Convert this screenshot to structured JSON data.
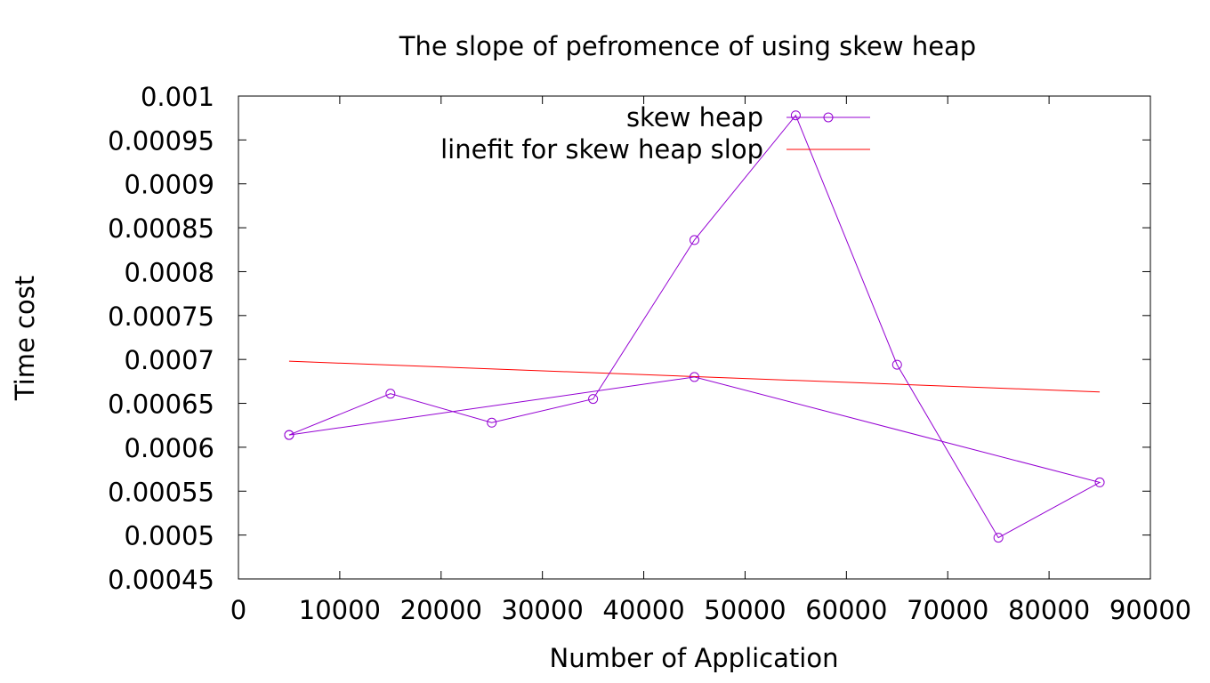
{
  "chart_data": {
    "type": "line",
    "title": "The slope of pefromence of using skew heap",
    "xlabel": "Number of Application",
    "ylabel": "Time cost",
    "xlim": [
      0,
      90000
    ],
    "ylim": [
      0.00045,
      0.001
    ],
    "x_ticks": [
      "0",
      "10000",
      "20000",
      "30000",
      "40000",
      "50000",
      "60000",
      "70000",
      "80000",
      "90000"
    ],
    "y_ticks": [
      "0.00045",
      "0.0005",
      "0.00055",
      "0.0006",
      "0.00065",
      "0.0007",
      "0.00075",
      "0.0008",
      "0.00085",
      "0.0009",
      "0.00095",
      "0.001"
    ],
    "legend_position": "top-right",
    "grid": false,
    "series": [
      {
        "name": "skew heap",
        "color": "#9400d3",
        "marker": "circle",
        "points": [
          [
            5000,
            0.000614
          ],
          [
            15000,
            0.000661
          ],
          [
            25000,
            0.000628
          ],
          [
            35000,
            0.000655
          ],
          [
            45000,
            0.000836
          ],
          [
            55000,
            0.000978
          ],
          [
            65000,
            0.000694
          ],
          [
            75000,
            0.000497
          ],
          [
            85000,
            0.00056
          ],
          [
            45000,
            0.00068
          ],
          [
            5000,
            0.000614
          ]
        ]
      },
      {
        "name": "linefit for skew heap slop",
        "color": "#ff0000",
        "marker": "none",
        "points": [
          [
            5000,
            0.000698
          ],
          [
            85000,
            0.000663
          ]
        ]
      }
    ]
  }
}
